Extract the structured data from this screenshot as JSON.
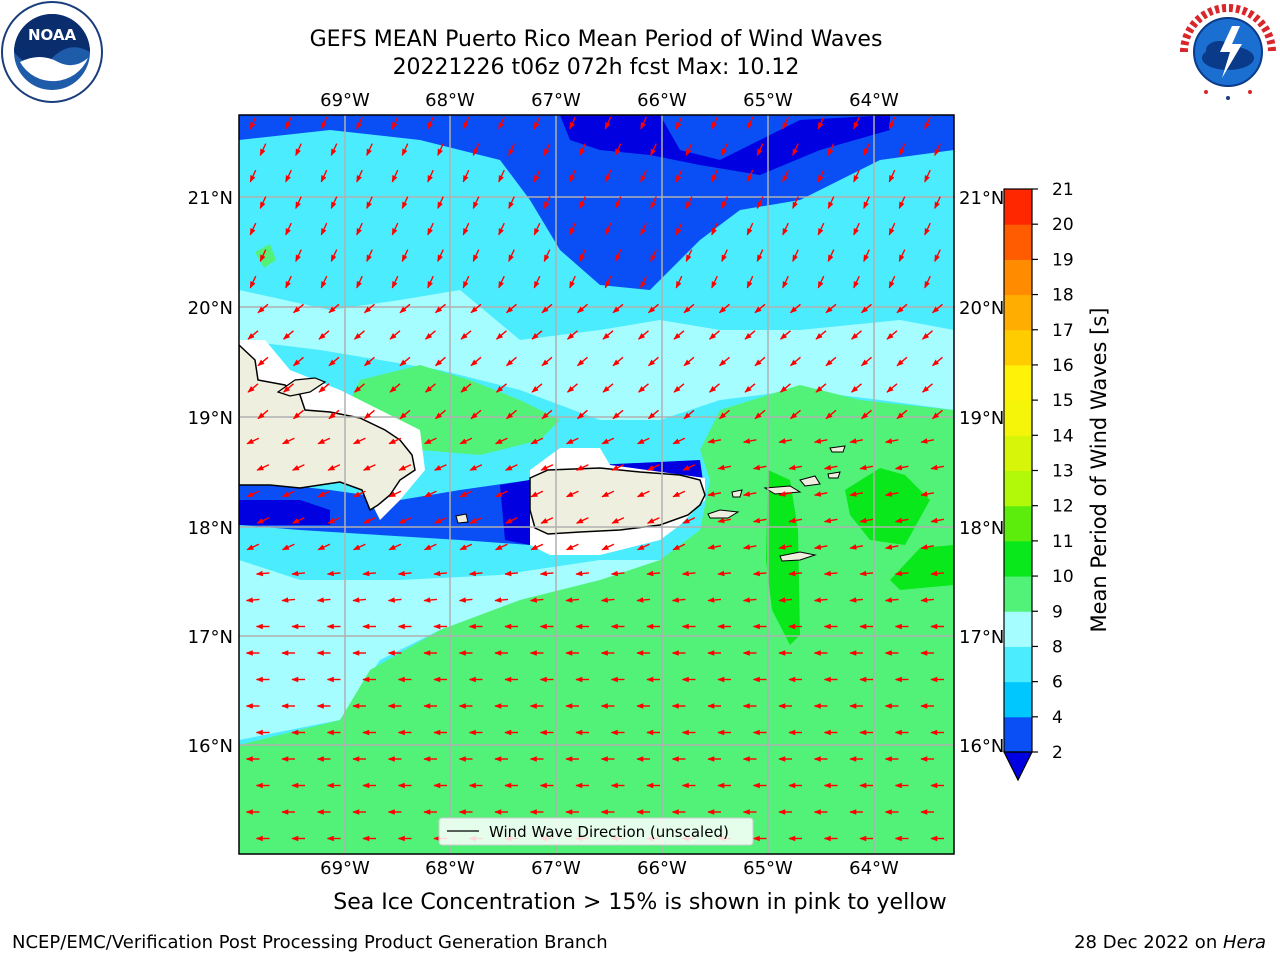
{
  "header": {
    "title_line1": "GEFS MEAN Puerto Rico Mean Period of Wind Waves",
    "title_line2": "20221226 t06z 072h fcst   Max: 10.12"
  },
  "map": {
    "lon_labels": [
      "69°W",
      "68°W",
      "67°W",
      "66°W",
      "65°W",
      "64°W"
    ],
    "lat_labels": [
      "21°N",
      "20°N",
      "19°N",
      "18°N",
      "17°N",
      "16°N"
    ],
    "legend_label": "Wind Wave Direction (unscaled)",
    "land_color": "#efefdf",
    "arrow_color": "#ff0000"
  },
  "colorbar": {
    "label": "Mean Period of Wind Waves [s]",
    "ticks": [
      "2",
      "4",
      "6",
      "8",
      "9",
      "10",
      "11",
      "12",
      "13",
      "14",
      "15",
      "16",
      "17",
      "18",
      "19",
      "20",
      "21"
    ],
    "colors": [
      "#0a4ef5",
      "#00c8ff",
      "#4cecff",
      "#a6fdff",
      "#52f279",
      "#09e81a",
      "#5ded0d",
      "#b1f909",
      "#d6f509",
      "#f4f509",
      "#fff209",
      "#ffcc00",
      "#ffad00",
      "#ff8c00",
      "#ff5b00",
      "#ff2700"
    ],
    "under_color": "#0000e0"
  },
  "subtitle": "Sea Ice Concentration > 15% is shown in pink to yellow",
  "footer": {
    "left": "NCEP/EMC/Verification Post Processing Product Generation Branch",
    "right_prefix": "28 Dec 2022 on ",
    "right_host": "Hera"
  }
}
